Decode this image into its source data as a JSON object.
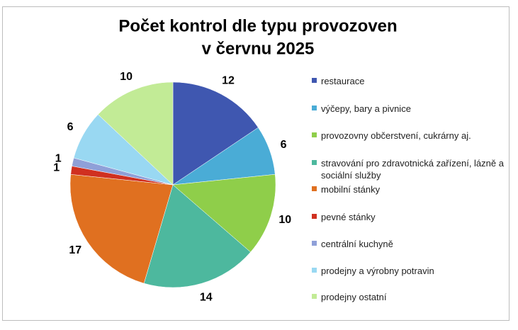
{
  "chart_data": {
    "type": "pie",
    "title": [
      "Počet kontrol dle typu provozoven",
      "v červnu 2025"
    ],
    "categories": [
      "restaurace",
      "výčepy, bary a pivnice",
      "provozovny občerstvení, cukrárny aj.",
      "stravování pro zdravotnická zařízení, lázně a sociální služby",
      "mobilní stánky",
      "pevné stánky",
      "centrální kuchyně",
      "prodejny a výrobny potravin",
      "prodejny ostatní"
    ],
    "values": [
      12,
      6,
      10,
      14,
      17,
      1,
      1,
      6,
      10
    ],
    "colors": [
      "#3f57b0",
      "#4aacd6",
      "#8fce4a",
      "#4db89e",
      "#e07020",
      "#d03020",
      "#8fa0d8",
      "#99d8f2",
      "#c2eb96"
    ],
    "legend": "right"
  }
}
